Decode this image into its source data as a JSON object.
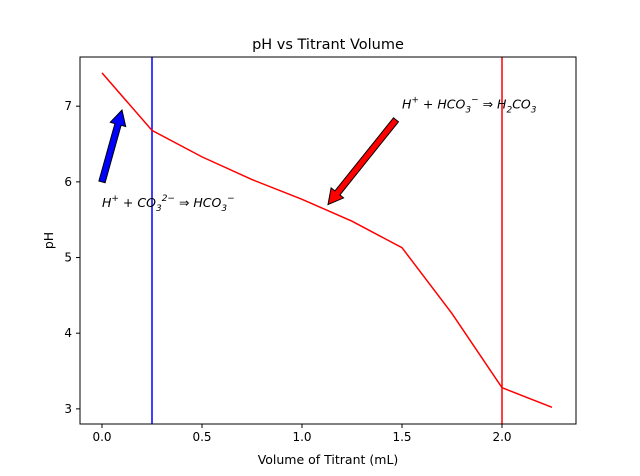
{
  "chart_data": {
    "type": "line",
    "title": "pH vs Titrant Volume",
    "xlabel": "Volume of Titrant (mL)",
    "ylabel": "pH",
    "xlim": [
      -0.11,
      2.37
    ],
    "ylim": [
      2.8,
      7.65
    ],
    "x_ticks": [
      "0.0",
      "0.5",
      "1.0",
      "1.5",
      "2.0"
    ],
    "y_ticks": [
      "3",
      "4",
      "5",
      "6",
      "7"
    ],
    "grid": false,
    "series": [
      {
        "color": "#ff0000",
        "x": [
          0.0,
          0.25,
          0.5,
          0.75,
          1.0,
          1.25,
          1.5,
          1.75,
          2.0,
          2.25
        ],
        "y": [
          7.44,
          6.68,
          6.33,
          6.03,
          5.77,
          5.48,
          5.13,
          4.26,
          3.28,
          3.02
        ]
      }
    ],
    "vertical_lines": [
      {
        "x": 0.25,
        "color": "#0000ff"
      },
      {
        "x": 2.0,
        "color": "#ff0000"
      }
    ],
    "annotations": [
      {
        "text": "H⁺ + CO₃²⁻ ⇒ HCO₃⁻",
        "text_pos": [
          0.0,
          5.72
        ],
        "arrow_from": [
          0.0,
          6.0
        ],
        "arrow_to": [
          0.1,
          6.95
        ],
        "arrow_color": "#0000ff"
      },
      {
        "text": "H⁺ + HCO₃⁻ ⇒ H₂CO₃",
        "text_pos": [
          1.5,
          7.02
        ],
        "arrow_from": [
          1.47,
          6.82
        ],
        "arrow_to": [
          1.13,
          5.7
        ],
        "arrow_color": "#ff0000"
      }
    ]
  }
}
